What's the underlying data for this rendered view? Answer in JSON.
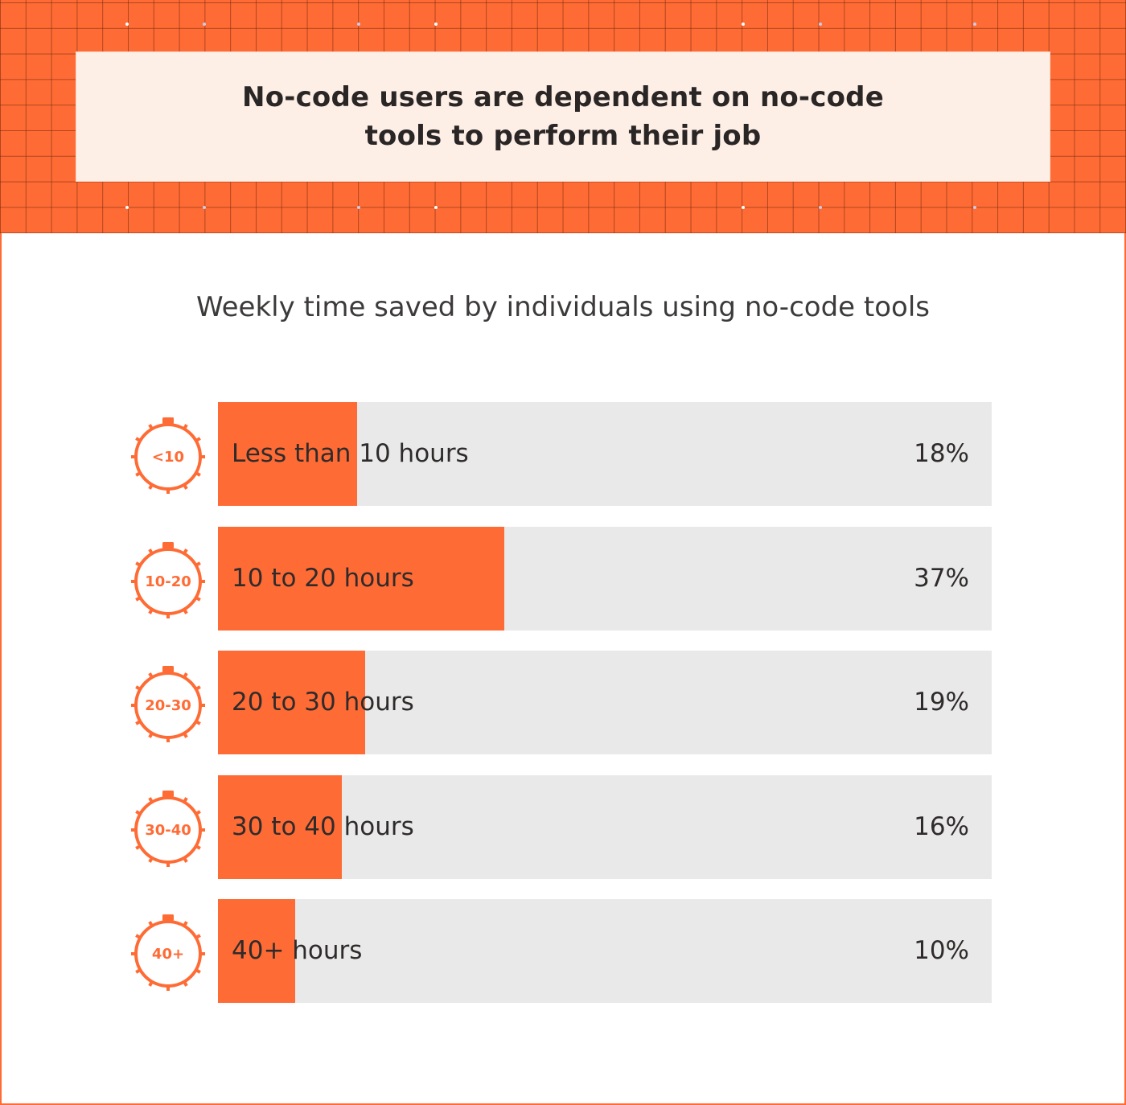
{
  "header": {
    "title": "No-code users are dependent on no-code tools to perform their job"
  },
  "colors": {
    "accent": "#ff6b35",
    "track": "#e9e9e9",
    "title_box": "#fdeee6",
    "text": "#2f2b2b"
  },
  "chart_data": {
    "type": "bar",
    "orientation": "horizontal",
    "title": "Weekly time saved by individuals using no-code tools",
    "categories": [
      "Less than 10 hours",
      "10 to 20 hours",
      "20 to 30 hours",
      "30 to 40 hours",
      "40+ hours"
    ],
    "icon_labels": [
      "<10",
      "10-20",
      "20-30",
      "30-40",
      "40+"
    ],
    "values": [
      18,
      37,
      19,
      16,
      10
    ],
    "value_labels": [
      "18%",
      "37%",
      "19%",
      "16%",
      "10%"
    ],
    "xlim": [
      0,
      100
    ],
    "unit": "%",
    "grid": false,
    "legend": "none"
  }
}
